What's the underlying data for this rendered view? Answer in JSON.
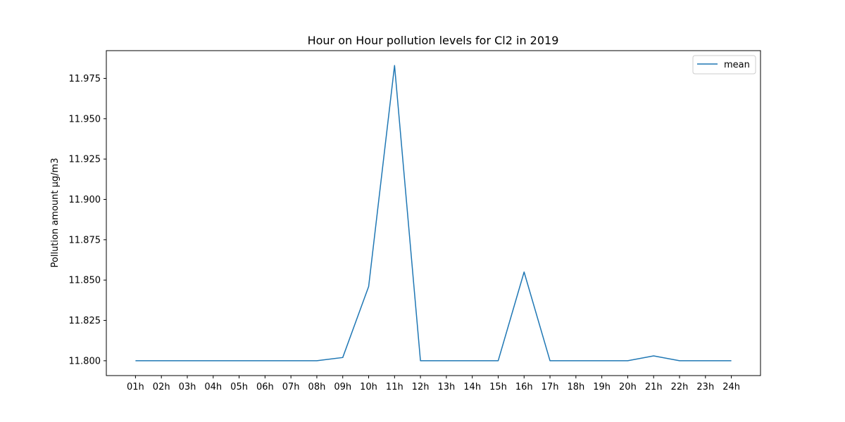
{
  "chart_data": {
    "type": "line",
    "title": "Hour on Hour pollution levels for Cl2 in 2019",
    "xlabel": "",
    "ylabel": "Pollution amount µg/m3",
    "categories": [
      "01h",
      "02h",
      "03h",
      "04h",
      "05h",
      "06h",
      "07h",
      "08h",
      "09h",
      "10h",
      "11h",
      "12h",
      "13h",
      "14h",
      "15h",
      "16h",
      "17h",
      "18h",
      "19h",
      "20h",
      "21h",
      "22h",
      "23h",
      "24h"
    ],
    "series": [
      {
        "name": "mean",
        "color": "#1f77b4",
        "values": [
          11.8,
          11.8,
          11.8,
          11.8,
          11.8,
          11.8,
          11.8,
          11.8,
          11.802,
          11.846,
          11.983,
          11.8,
          11.8,
          11.8,
          11.8,
          11.855,
          11.8,
          11.8,
          11.8,
          11.8,
          11.803,
          11.8,
          11.8,
          11.8
        ]
      }
    ],
    "yticks": [
      "11.800",
      "11.825",
      "11.850",
      "11.875",
      "11.900",
      "11.925",
      "11.950",
      "11.975"
    ],
    "ylim": [
      11.7908,
      11.9922
    ],
    "grid": false,
    "legend": "top-right"
  }
}
